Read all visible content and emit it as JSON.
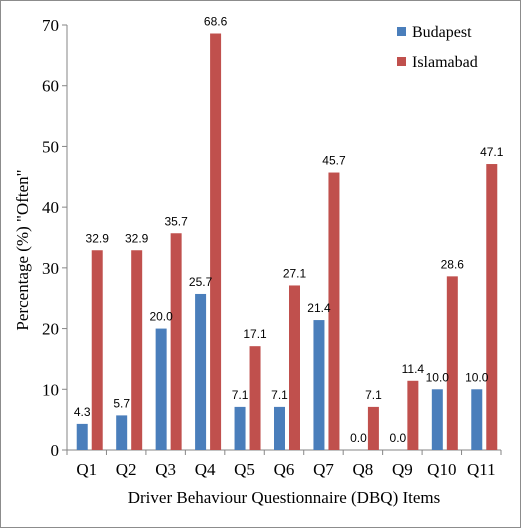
{
  "chart_data": {
    "type": "bar",
    "categories": [
      "Q1",
      "Q2",
      "Q3",
      "Q4",
      "Q5",
      "Q6",
      "Q7",
      "Q8",
      "Q9",
      "Q10",
      "Q11"
    ],
    "series": [
      {
        "name": "Budapest",
        "color": "#4a7ebb",
        "values": [
          4.3,
          5.7,
          20.0,
          25.7,
          7.1,
          7.1,
          21.4,
          0.0,
          0.0,
          10.0,
          10.0
        ]
      },
      {
        "name": "Islamabad",
        "color": "#c0504d",
        "values": [
          32.9,
          32.9,
          35.7,
          68.6,
          17.1,
          27.1,
          45.7,
          7.1,
          11.4,
          28.6,
          47.1
        ]
      }
    ],
    "title": "",
    "xlabel": "Driver Behaviour Questionnaire (DBQ) Items",
    "ylabel": "Percentage (%) \"Often\"",
    "ylim": [
      0,
      70
    ],
    "yticks": [
      0,
      10,
      20,
      30,
      40,
      50,
      60,
      70
    ],
    "grid": false,
    "legend": "top-right",
    "data_label_decimals": 1
  }
}
